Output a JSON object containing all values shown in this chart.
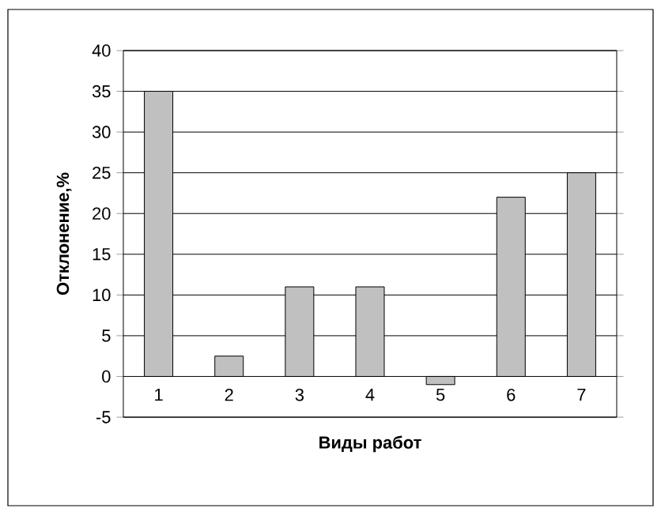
{
  "chart_data": {
    "type": "bar",
    "xlabel": "Виды работ",
    "ylabel": "Отклонение,%",
    "categories": [
      "1",
      "2",
      "3",
      "4",
      "5",
      "6",
      "7"
    ],
    "values": [
      35,
      2.5,
      11,
      11,
      -1,
      22,
      25
    ],
    "color": "#c0c0c0",
    "ylim": [
      -5,
      40
    ],
    "yticks": [
      -5,
      0,
      5,
      10,
      15,
      20,
      25,
      30,
      35,
      40
    ],
    "grid": "y"
  }
}
